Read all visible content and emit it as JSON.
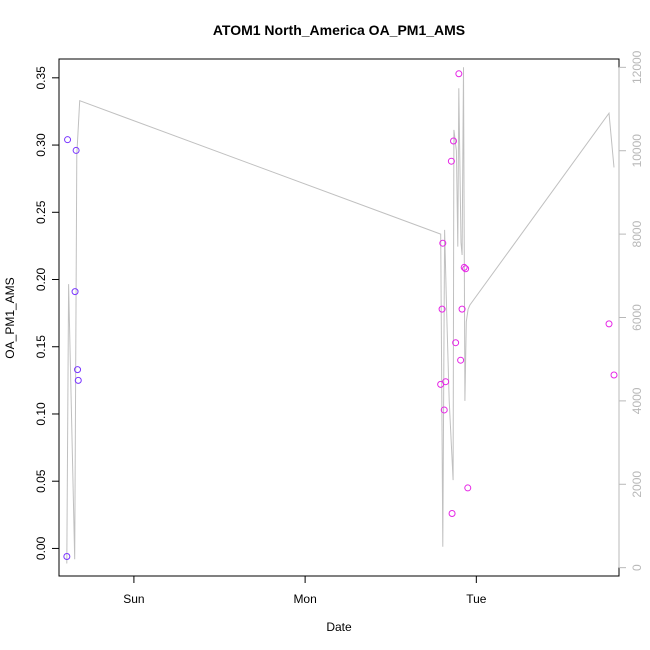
{
  "chart_data": {
    "type": "scatter",
    "title": "ATOM1 North_America OA_PM1_AMS",
    "xlabel": "Date",
    "ylabel": "OA_PM1_AMS",
    "x_ticks": [
      "Sun",
      "Mon",
      "Tue"
    ],
    "x_tick_hours": [
      24,
      48,
      72
    ],
    "xlim_hours": [
      13.5,
      92.0
    ],
    "ylim": [
      -0.0205,
      0.364
    ],
    "y_ticks": [
      0.0,
      0.05,
      0.1,
      0.15,
      0.2,
      0.25,
      0.3,
      0.35
    ],
    "y_tick_labels": [
      "0.00",
      "0.05",
      "0.10",
      "0.15",
      "0.20",
      "0.25",
      "0.30",
      "0.35"
    ],
    "y2lim": [
      -200,
      12200
    ],
    "y2_ticks": [
      0,
      2000,
      4000,
      6000,
      8000,
      10000,
      12000
    ],
    "y2_tick_labels": [
      "0",
      "2000",
      "4000",
      "6000",
      "8000",
      "10000",
      "12000"
    ],
    "series": [
      {
        "marker": "open-circle",
        "color": "#7a36ff",
        "x_hours": [
          14.6,
          14.7,
          15.75,
          15.9,
          16.1,
          16.2
        ],
        "y": [
          -0.006,
          0.304,
          0.191,
          0.296,
          0.133,
          0.125
        ]
      },
      {
        "marker": "open-circle",
        "color": "#e626e6",
        "x_hours": [
          67.0,
          67.2,
          67.3,
          67.5,
          67.7,
          68.5,
          68.6,
          68.8,
          69.1,
          69.55,
          69.8,
          70.0,
          70.3,
          70.5,
          70.8,
          90.6,
          91.3
        ],
        "y": [
          0.122,
          0.178,
          0.227,
          0.103,
          0.124,
          0.288,
          0.026,
          0.303,
          0.153,
          0.353,
          0.14,
          0.178,
          0.209,
          0.208,
          0.045,
          0.167,
          0.129
        ]
      },
      {
        "line": true,
        "color": "#c0c0c0",
        "axis": "right",
        "x_hours": [
          14.6,
          14.85,
          15.7,
          16.0,
          16.4,
          67.0,
          67.3,
          67.55,
          67.85,
          68.2,
          68.75,
          68.85,
          69.2,
          69.4,
          69.55,
          69.85,
          70.0,
          70.2,
          70.4,
          70.6,
          70.85,
          71.1,
          90.6,
          91.3
        ],
        "y2": [
          100,
          6800,
          200,
          9900,
          11200,
          8000,
          500,
          8100,
          6100,
          4000,
          2100,
          10500,
          10000,
          7700,
          11500,
          7800,
          7500,
          12000,
          4000,
          5900,
          6200,
          6300,
          10900,
          9600
        ]
      }
    ]
  }
}
